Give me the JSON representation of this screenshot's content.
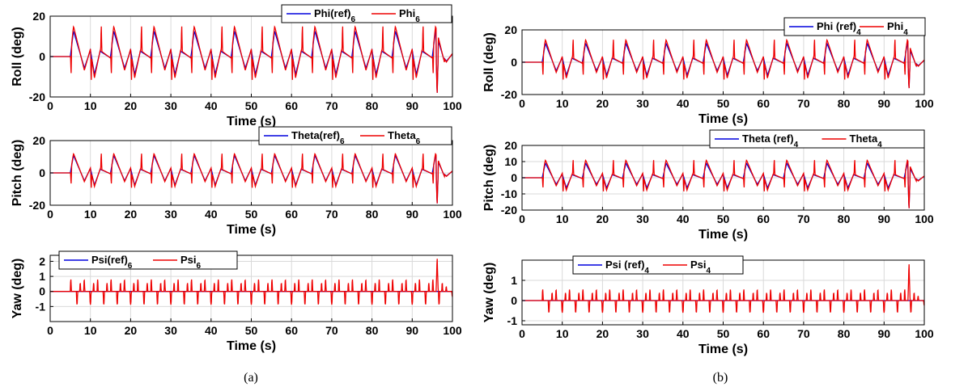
{
  "colors": {
    "ref": "#0000dd",
    "actual": "#ee0000",
    "grid": "#d9d9d9",
    "axis": "#000000"
  },
  "panel_captions": [
    "(a)",
    "(b)"
  ],
  "chart_data": [
    {
      "type": "line",
      "panel": "a",
      "xlabel": "Time (s)",
      "ylabel": "Roll (deg)",
      "xlim": [
        0,
        100
      ],
      "ylim": [
        -20,
        20
      ],
      "xticks": [
        0,
        10,
        20,
        30,
        40,
        50,
        60,
        70,
        80,
        90,
        100
      ],
      "yticks": [
        -20,
        0,
        20
      ],
      "grid": true,
      "legend_position": "top-right",
      "legend_orientation": "horizontal",
      "series": [
        {
          "name": "Phi(ref)",
          "sub": "6",
          "role": "ref",
          "amp": 14,
          "period": 10,
          "start": 5,
          "end_wave": 98,
          "spike": -19,
          "x": [
            0,
            5,
            10.3,
            15,
            20.3,
            50,
            100
          ],
          "y": [
            0,
            0,
            16,
            -8,
            16,
            16,
            0
          ]
        },
        {
          "name": "Phi",
          "sub": "6",
          "role": "actual",
          "amp": 15,
          "period": 10,
          "start": 5,
          "end_wave": 98,
          "spike": -19,
          "x": [
            0,
            5,
            10,
            15,
            20,
            96.5,
            100
          ],
          "y": [
            0,
            -14,
            16,
            -14,
            16,
            -19,
            0
          ]
        }
      ]
    },
    {
      "type": "line",
      "panel": "a",
      "xlabel": "Time (s)",
      "ylabel": "Pitch (deg)",
      "xlim": [
        0,
        100
      ],
      "ylim": [
        -20,
        20
      ],
      "xticks": [
        0,
        10,
        20,
        30,
        40,
        50,
        60,
        70,
        80,
        90,
        100
      ],
      "yticks": [
        -20,
        0,
        20
      ],
      "grid": true,
      "legend_position": "top-right",
      "legend_orientation": "horizontal",
      "series": [
        {
          "name": "Theta(ref)",
          "sub": "6",
          "role": "ref",
          "amp": 12,
          "period": 10,
          "start": 5,
          "end_wave": 98,
          "spike": -20,
          "x": [
            0,
            5,
            11,
            15.5,
            21,
            100
          ],
          "y": [
            0,
            0,
            14,
            -10,
            12,
            0
          ]
        },
        {
          "name": "Theta",
          "sub": "6",
          "role": "actual",
          "amp": 12,
          "period": 10,
          "start": 5,
          "end_wave": 98,
          "spike": -20,
          "x": [
            0,
            5,
            10.5,
            15,
            20.5,
            96,
            100
          ],
          "y": [
            0,
            13,
            12,
            -15,
            12,
            -20,
            0
          ]
        }
      ]
    },
    {
      "type": "line",
      "panel": "a",
      "xlabel": "Time (s)",
      "ylabel": "Yaw (deg)",
      "xlim": [
        0,
        100
      ],
      "ylim": [
        -2,
        2.4
      ],
      "xticks": [
        0,
        10,
        20,
        30,
        40,
        50,
        60,
        70,
        80,
        90,
        100
      ],
      "yticks": [
        -1,
        0,
        1,
        2
      ],
      "grid": true,
      "legend_position": "top-left",
      "legend_orientation": "horizontal",
      "series": [
        {
          "name": "Psi(ref)",
          "sub": "6",
          "role": "ref",
          "amp": 0,
          "period": 10,
          "start": 5,
          "end_wave": 98,
          "spike": 0,
          "x": [
            0,
            100
          ],
          "y": [
            0,
            0
          ]
        },
        {
          "name": "Psi",
          "sub": "6",
          "role": "actual",
          "amp": 0.8,
          "period": 10,
          "start": 5,
          "end_wave": 98,
          "spike": 2.3,
          "x": [
            0,
            5,
            11,
            21,
            96.5,
            100
          ],
          "y": [
            0,
            0.8,
            -1.8,
            -1.6,
            2.3,
            0
          ]
        }
      ]
    },
    {
      "type": "line",
      "panel": "b",
      "xlabel": "Time (s)",
      "ylabel": "Roll (deg)",
      "xlim": [
        0,
        100
      ],
      "ylim": [
        -20,
        20
      ],
      "xticks": [
        0,
        10,
        20,
        30,
        40,
        50,
        60,
        70,
        80,
        90,
        100
      ],
      "yticks": [
        -20,
        0,
        20
      ],
      "grid": true,
      "legend_position": "top-right",
      "legend_orientation": "horizontal",
      "series": [
        {
          "name": "Phi (ref)",
          "sub": "4",
          "role": "ref",
          "amp": 13,
          "period": 10,
          "start": 5,
          "end_wave": 98,
          "spike": -17,
          "x": [
            0,
            5,
            10.5,
            15,
            20.5,
            100
          ],
          "y": [
            0,
            0,
            13,
            -5,
            13,
            5
          ]
        },
        {
          "name": "Phi",
          "sub": "4",
          "role": "actual",
          "amp": 14,
          "period": 10,
          "start": 5,
          "end_wave": 98,
          "spike": -17,
          "x": [
            0,
            5,
            10,
            15,
            96,
            100
          ],
          "y": [
            0,
            -12,
            15,
            -14,
            -17,
            3
          ]
        }
      ]
    },
    {
      "type": "line",
      "panel": "b",
      "xlabel": "Time (s)",
      "ylabel": "Pitch (deg)",
      "xlim": [
        0,
        100
      ],
      "ylim": [
        -20,
        20
      ],
      "xticks": [
        0,
        10,
        20,
        30,
        40,
        50,
        60,
        70,
        80,
        90,
        100
      ],
      "yticks": [
        -20,
        -10,
        0,
        10,
        20
      ],
      "grid": true,
      "legend_position": "top-right",
      "legend_orientation": "horizontal",
      "series": [
        {
          "name": "Theta (ref)",
          "sub": "4",
          "role": "ref",
          "amp": 10,
          "period": 10,
          "start": 5,
          "end_wave": 98,
          "spike": -20,
          "x": [
            0,
            5,
            11,
            15.5,
            100
          ],
          "y": [
            0,
            0,
            10,
            -9,
            4
          ]
        },
        {
          "name": "Theta",
          "sub": "4",
          "role": "actual",
          "amp": 11,
          "period": 10,
          "start": 5,
          "end_wave": 98,
          "spike": -20,
          "x": [
            0,
            5,
            10.5,
            15,
            95.5,
            100
          ],
          "y": [
            0,
            10,
            11,
            -13,
            -20,
            5
          ]
        }
      ]
    },
    {
      "type": "line",
      "panel": "b",
      "xlabel": "Time (s)",
      "ylabel": "Yaw (deg)",
      "xlim": [
        0,
        100
      ],
      "ylim": [
        -1.2,
        2
      ],
      "xticks": [
        0,
        10,
        20,
        30,
        40,
        50,
        60,
        70,
        80,
        90,
        100
      ],
      "yticks": [
        -1,
        0,
        1
      ],
      "grid": true,
      "legend_position": "top-left",
      "legend_orientation": "horizontal",
      "series": [
        {
          "name": "Psi (ref)",
          "sub": "4",
          "role": "ref",
          "amp": 0,
          "period": 10,
          "start": 5,
          "end_wave": 98,
          "spike": 0,
          "x": [
            0,
            100
          ],
          "y": [
            0,
            0
          ]
        },
        {
          "name": "Psi",
          "sub": "4",
          "role": "actual",
          "amp": 0.55,
          "period": 10,
          "start": 5,
          "end_wave": 98,
          "spike": 1.9,
          "x": [
            0,
            5,
            10,
            96,
            100
          ],
          "y": [
            0,
            0.6,
            -1,
            1.9,
            0
          ]
        }
      ]
    }
  ]
}
